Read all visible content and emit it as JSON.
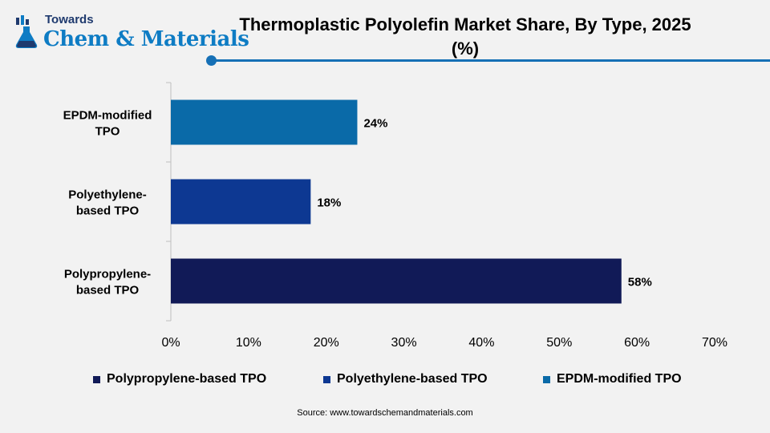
{
  "brand": {
    "small": "Towards",
    "big": "Chem & Materials"
  },
  "colors": {
    "accent": "#1670b6",
    "brand_blue": "#0e7cc4",
    "brand_navy": "#1f3a6e"
  },
  "source": "Source:  www.towardschemandmaterials.com",
  "chart_data": {
    "type": "bar",
    "orientation": "horizontal",
    "title": "Thermoplastic Polyolefin Market Share, By Type, 2025 (%)",
    "xlabel": "",
    "ylabel": "",
    "categories": [
      "EPDM-modified TPO",
      "Polyethylene-based TPO",
      "Polypropylene-based TPO"
    ],
    "values": [
      24,
      18,
      58
    ],
    "value_labels": [
      "24%",
      "18%",
      "58%"
    ],
    "colors": [
      "#0a6aa8",
      "#0d3892",
      "#111a57"
    ],
    "xlim": [
      0,
      70
    ],
    "x_ticks": [
      "0%",
      "10%",
      "20%",
      "30%",
      "40%",
      "50%",
      "60%",
      "70%"
    ],
    "grid": false,
    "legend_position": "bottom",
    "legend": [
      {
        "label": "Polypropylene-based TPO",
        "color": "#111a57"
      },
      {
        "label": "Polyethylene-based TPO",
        "color": "#0d3892"
      },
      {
        "label": "EPDM-modified TPO",
        "color": "#0a6aa8"
      }
    ]
  }
}
